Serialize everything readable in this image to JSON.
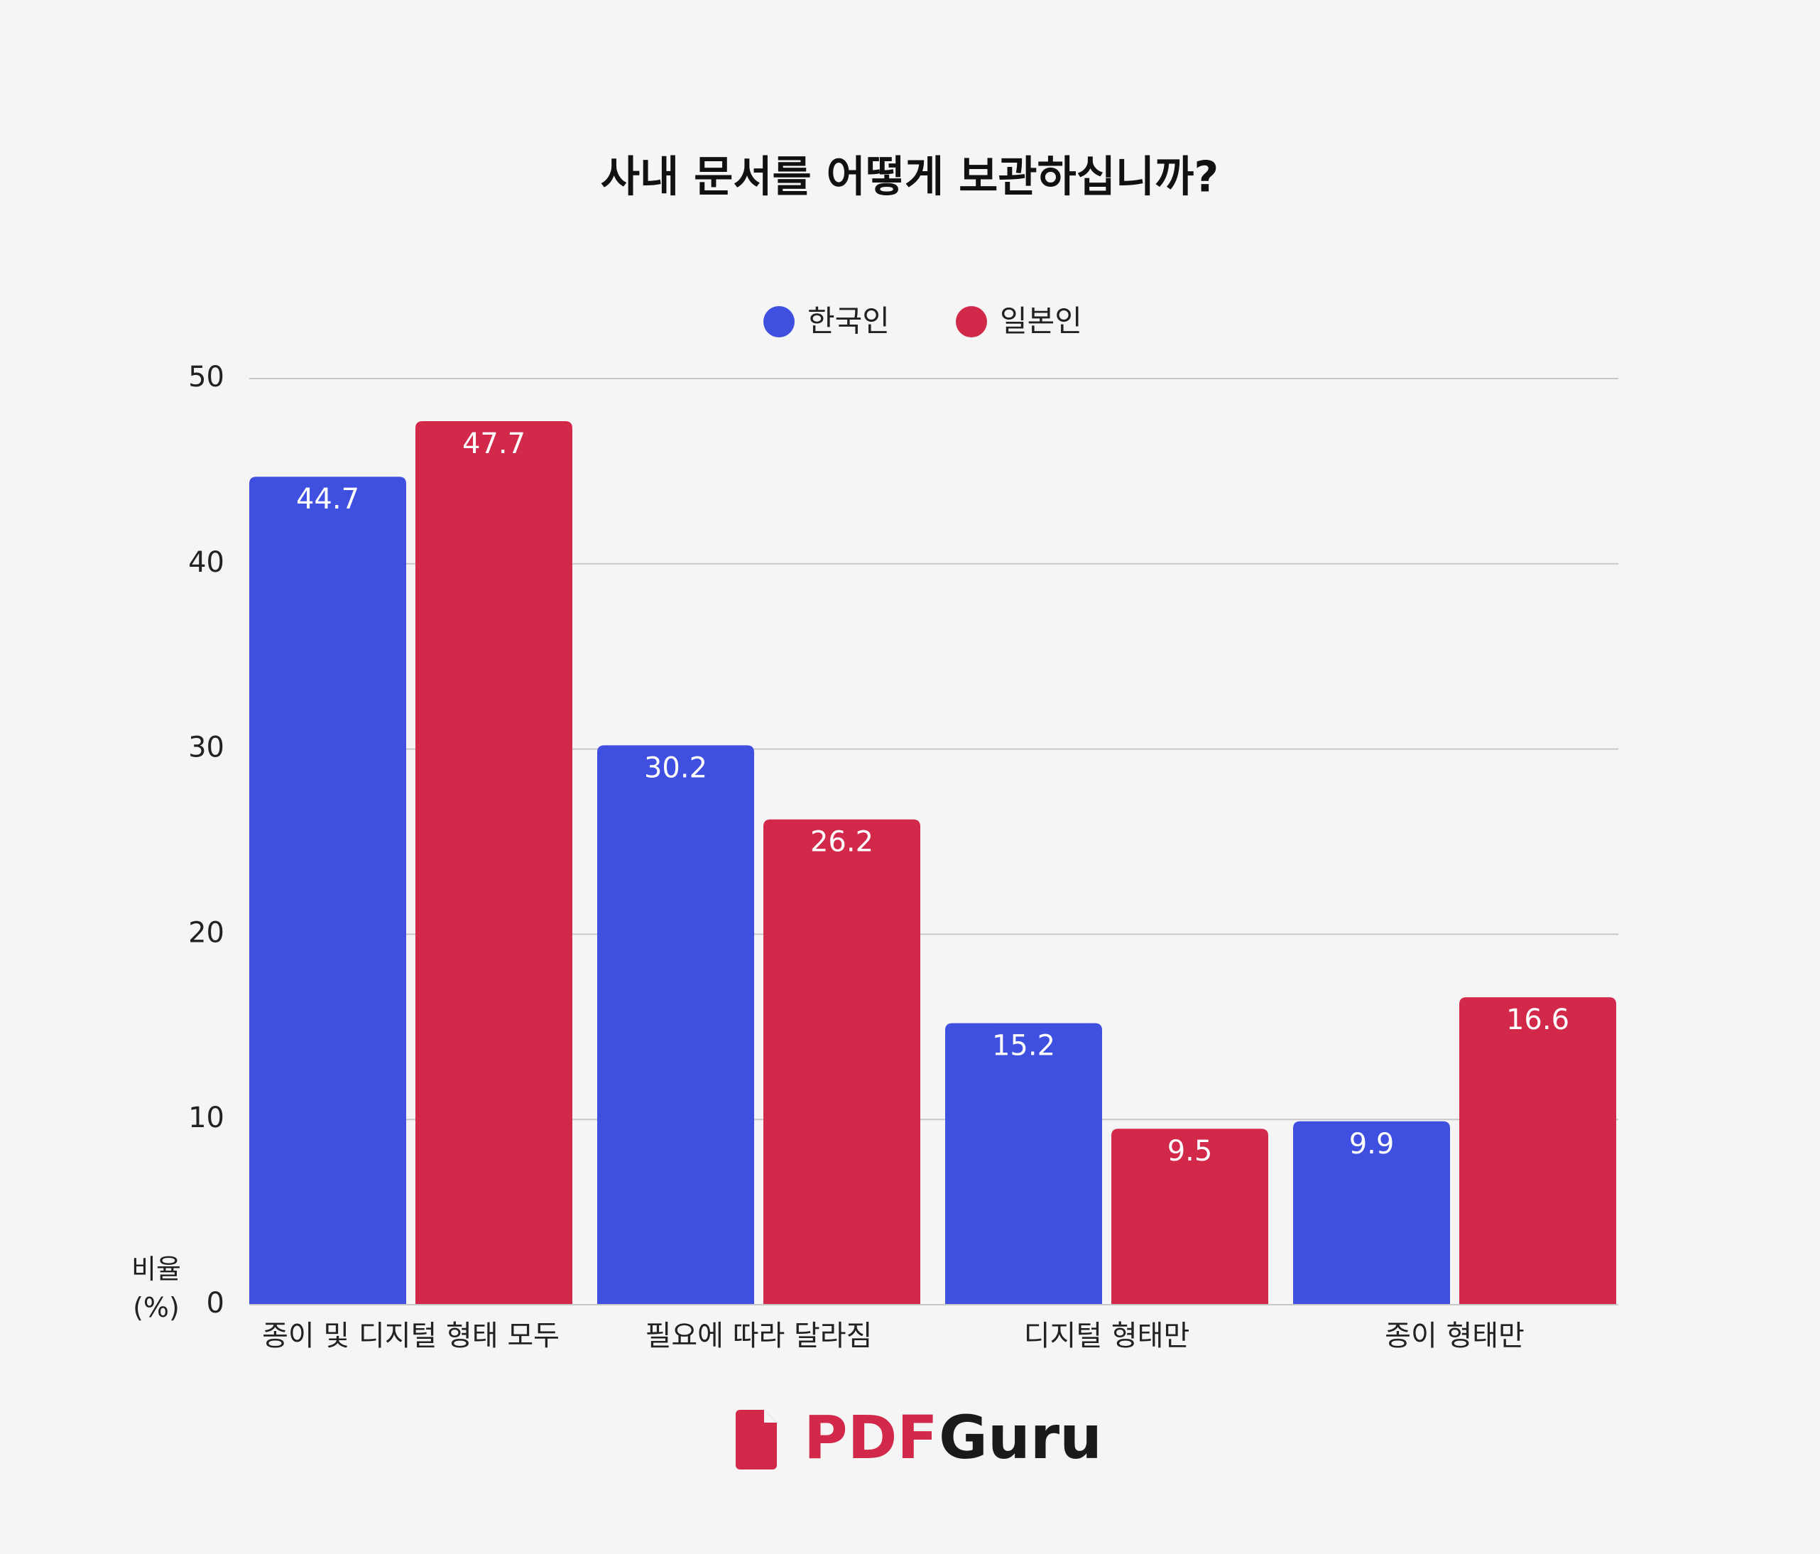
{
  "chart_data": {
    "type": "bar",
    "title": "사내 문서를 어떻게 보관하십니까?",
    "categories": [
      "종이 및 디지털 형태 모두",
      "필요에 따라 달라짐",
      "디지털 형태만",
      "종이 형태만"
    ],
    "series": [
      {
        "name": "한국인",
        "color": "#3f4fe0",
        "values": [
          44.7,
          30.2,
          15.2,
          9.9
        ]
      },
      {
        "name": "일본인",
        "color": "#d2294a",
        "values": [
          47.7,
          26.2,
          9.5,
          16.6
        ]
      }
    ],
    "y_label": "비율 (%)",
    "ylim": [
      0,
      50
    ],
    "yticks": [
      0,
      10,
      20,
      30,
      40,
      50
    ],
    "grid": true,
    "legend": "top"
  },
  "logo": {
    "brand": "PDF",
    "name": "Guru"
  }
}
